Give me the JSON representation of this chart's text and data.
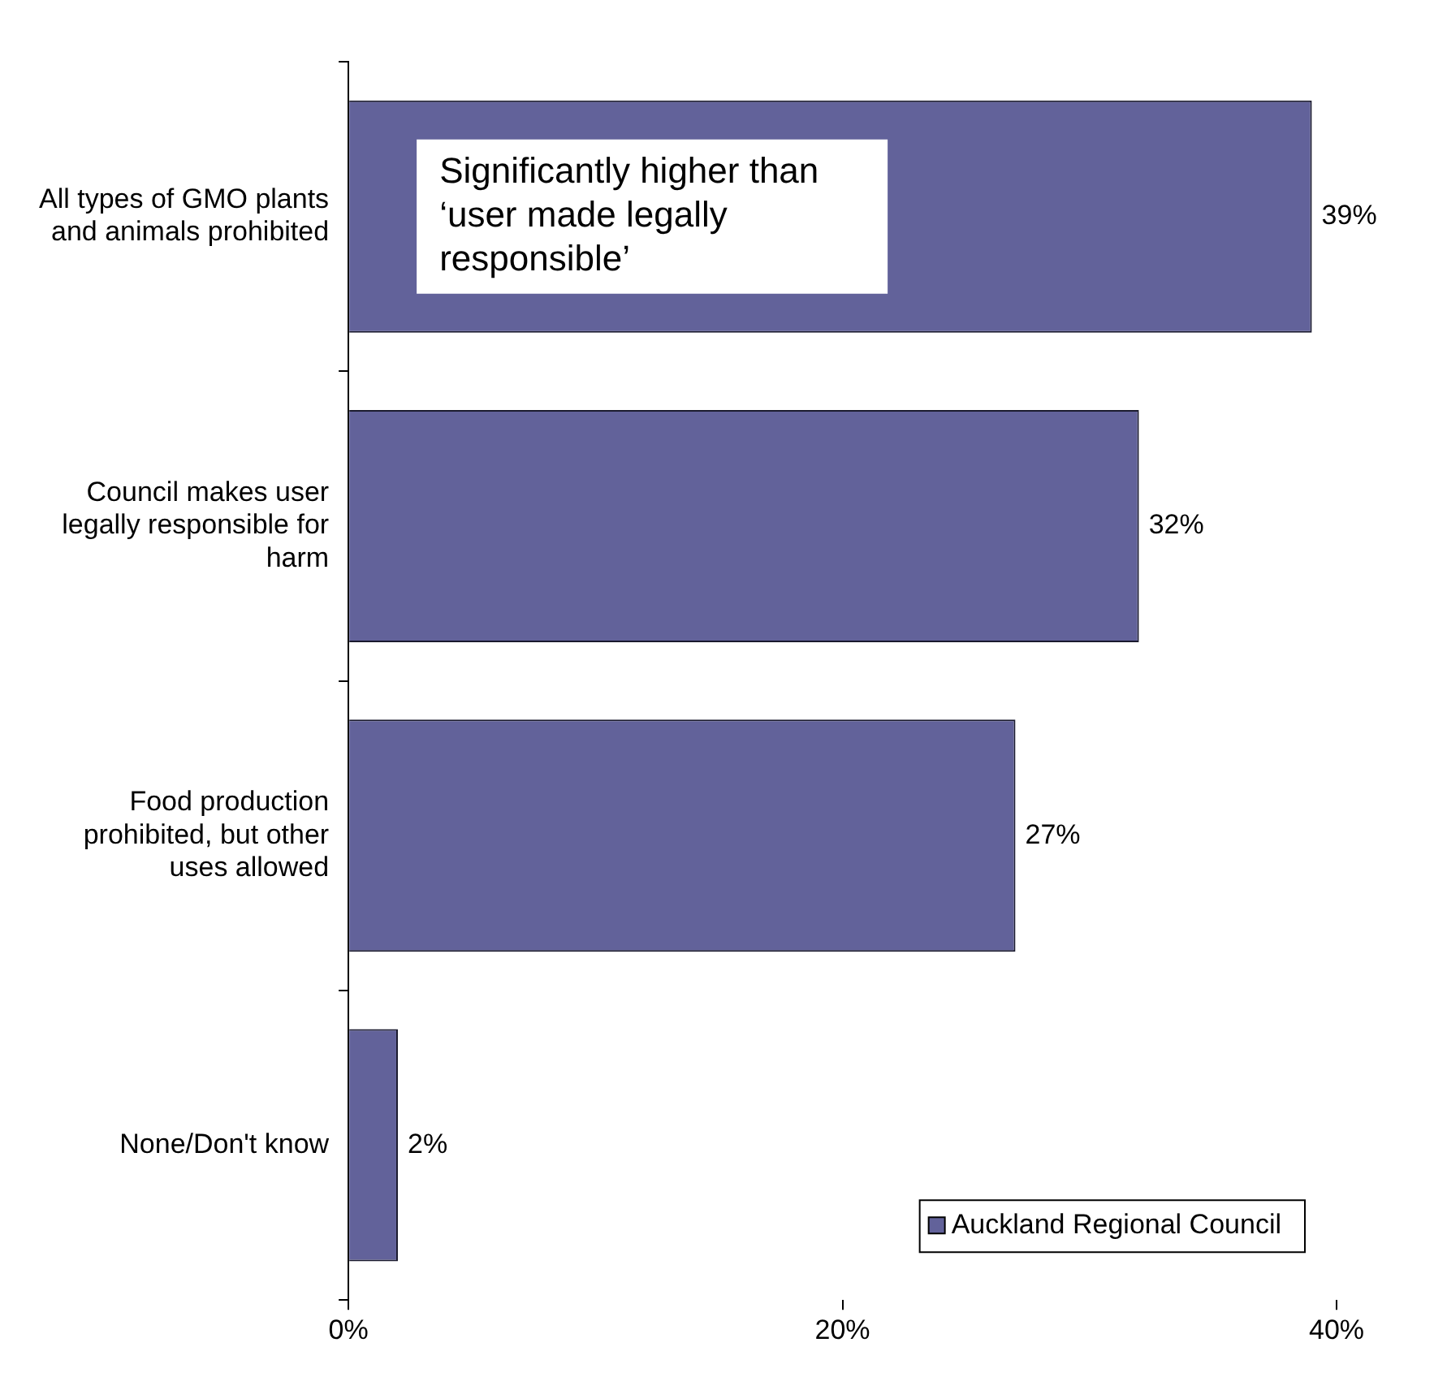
{
  "chart_data": {
    "type": "bar",
    "orientation": "horizontal",
    "categories": [
      "All types of GMO plants and animals prohibited",
      "Council makes user legally responsible for harm",
      "Food production prohibited, but other uses allowed",
      "None/Don't know"
    ],
    "series": [
      {
        "name": "Auckland Regional Council",
        "color": "#62629a",
        "values": [
          39,
          32,
          27,
          2
        ],
        "value_labels": [
          "39%",
          "32%",
          "27%",
          "2%"
        ]
      }
    ],
    "xlim": [
      0,
      40
    ],
    "xticks": [
      {
        "value": 0,
        "label": "0%"
      },
      {
        "value": 20,
        "label": "20%"
      },
      {
        "value": 40,
        "label": "40%"
      }
    ],
    "grid": false,
    "legend": "bottom right",
    "annotations": [
      "Significantly higher than ‘user made legally responsible’"
    ]
  }
}
